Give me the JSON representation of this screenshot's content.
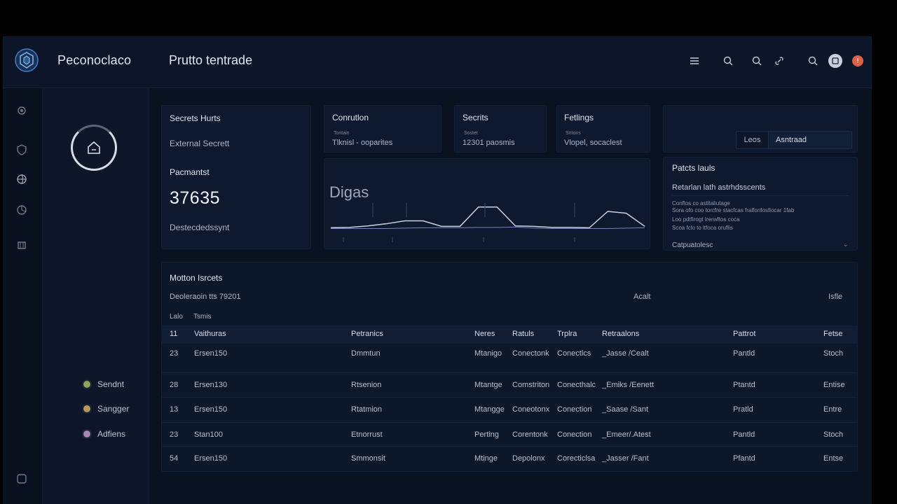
{
  "header": {
    "brand": "Peconoclaco",
    "page_title": "Prutto tentrade",
    "icons": [
      "menu-icon",
      "search-icon",
      "search-icon",
      "link-icon",
      "search-icon",
      "avatar",
      "notification-icon"
    ],
    "notification_badge": "!"
  },
  "rail": {
    "icons": [
      "gear-icon",
      "shield-icon",
      "globe-icon",
      "chart-icon",
      "layers-icon",
      "help-icon"
    ]
  },
  "left_panel": {
    "legend": [
      {
        "label": "Sendnt",
        "color": "#8fa35a"
      },
      {
        "label": "Sangger",
        "color": "#b99a5c"
      },
      {
        "label": "Adfiens",
        "color": "#a985b3"
      }
    ]
  },
  "secrets_card": {
    "title": "Secrets Hurts",
    "subtitle": "External Secrett",
    "section_label": "Pacmantst",
    "big_value": "37635",
    "footer": "Destecdedssynt"
  },
  "stat_cards": [
    {
      "title": "Conrutlon",
      "sublabel": "Tontain",
      "value": "Tlknisl - ooparites"
    },
    {
      "title": "Secrits",
      "sublabel": "Sostet",
      "value": "12301 paosmis"
    },
    {
      "title": "Fetlings",
      "sublabel": "Sntoirs",
      "value": "Vlopel, socaclest"
    }
  ],
  "chart": {
    "title": "Digas"
  },
  "chart_data": {
    "type": "line",
    "title": "Digas",
    "xlabel": "",
    "ylabel": "",
    "grid": false,
    "legend": "none",
    "x": [
      0,
      1,
      2,
      3,
      4,
      5,
      6,
      7,
      8,
      9,
      10,
      11,
      12,
      13,
      14,
      15,
      16,
      17
    ],
    "series": [
      {
        "values": [
          0.05,
          0.06,
          0.1,
          0.16,
          0.24,
          0.24,
          0.09,
          0.09,
          0.62,
          0.62,
          0.1,
          0.09,
          0.06,
          0.06,
          0.05,
          0.5,
          0.45,
          0.09
        ]
      },
      {
        "values": [
          0.03,
          0.03,
          0.03,
          0.03,
          0.04,
          0.05,
          0.05,
          0.05,
          0.06,
          0.06,
          0.07,
          0.04,
          0.03,
          0.03,
          0.03,
          0.03,
          0.04,
          0.05
        ]
      }
    ],
    "ylim": [
      0,
      1
    ]
  },
  "segmented": {
    "options": [
      "Leos",
      "Asntraad"
    ]
  },
  "activity_card": {
    "title": "Patcts lauls",
    "subtitle": "Retarlan lath astrhdsscents",
    "lines": [
      "Conflos co astitaliutage",
      "Sora ofo coo torcfre stacfcas fralfonfosfiocar 1fab",
      "Loo pdtfirogt Irerwftos coca",
      "Scoa fclo to ltfoca oruflis"
    ],
    "footer": "Catpuatolesc"
  },
  "table": {
    "title": "Motton Isrcets",
    "subtitle": "Deoleraoin tts 79201",
    "mid_label": "Acalt",
    "right_label": "Isfle",
    "filter_left": "Lalo",
    "filter_right": "Tsmis",
    "headers": [
      "11",
      "Vaithuras",
      "Petranics",
      "Neres",
      "Ratuls",
      "Trplra",
      "Retraalons",
      "Pattrot",
      "Fetse"
    ],
    "rows": [
      [
        "23",
        "Ersen150",
        "Dmmtun",
        "Mtanigo",
        "Conectonk",
        "Conectlcs",
        "_Jasse /Cealt",
        "Pantld",
        "Stoch"
      ],
      [
        "28",
        "Ersen130",
        "Rtsenion",
        "Mtantge",
        "Comstriton",
        "Conecthalc",
        "_Emiks /Eenett",
        "Ptantd",
        "Entise"
      ],
      [
        "13",
        "Ersen150",
        "Rtatmion",
        "Mtangge",
        "Coneotonx",
        "Conection",
        "_Saase /Sant",
        "Pratld",
        "Entre"
      ],
      [
        "23",
        "Stan100",
        "Etnorrust",
        "Perting",
        "Corentonk",
        "Conection",
        "_Emeer/.Atest",
        "Pantld",
        "Stoch"
      ],
      [
        "54",
        "Ersen150",
        "Smmonsit",
        "Mtinge",
        "Depolonx",
        "Corecticlsa",
        "_Jasser /Fant",
        "Pfantd",
        "Entse"
      ]
    ]
  },
  "colors": {
    "background": "#0a1222",
    "panel": "#0e192d",
    "accent_line": "#c7d2e4",
    "notification": "#d9624a"
  }
}
